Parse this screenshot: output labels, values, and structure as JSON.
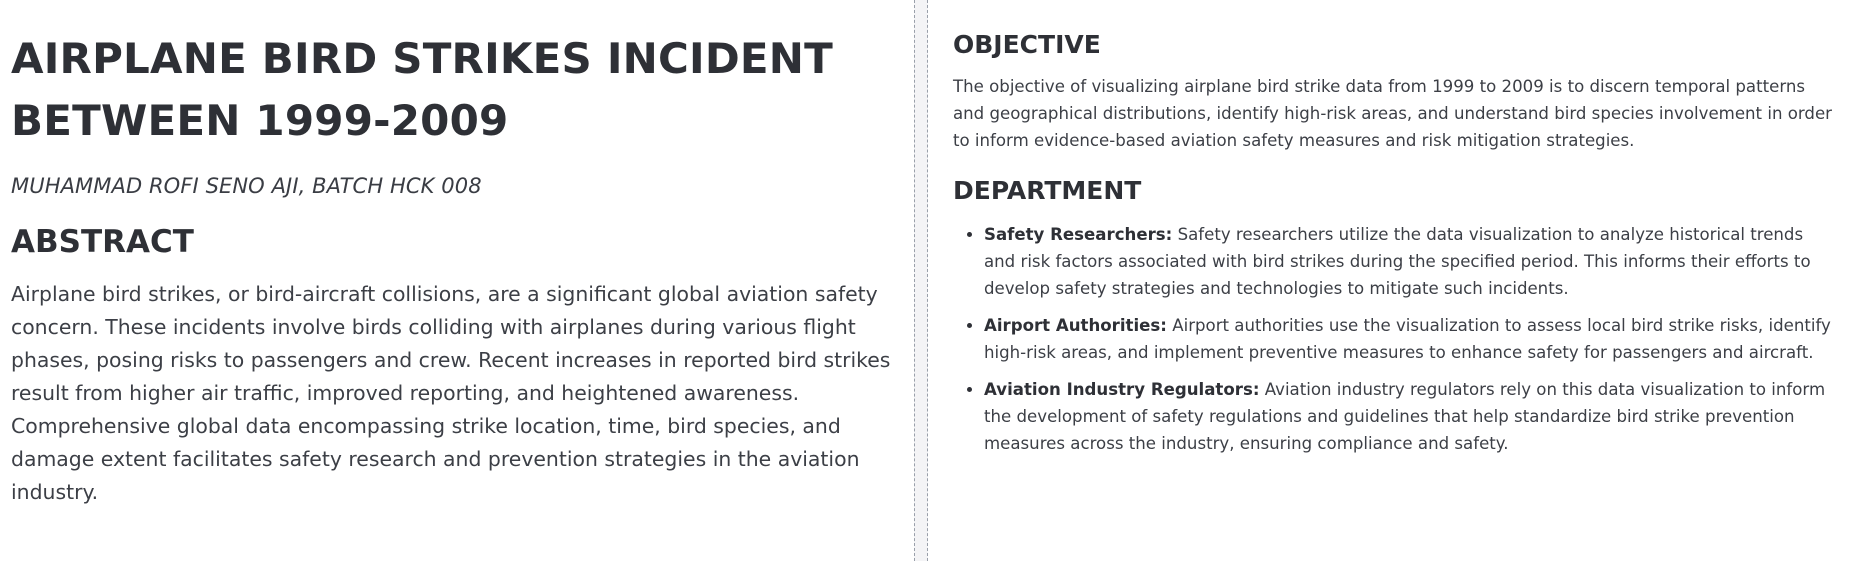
{
  "document": {
    "title": "AIRPLANE BIRD STRIKES INCIDENT BETWEEN 1999-2009",
    "author": "MUHAMMAD ROFI SENO AJI, BATCH HCK 008",
    "abstract": {
      "heading": "ABSTRACT",
      "text": "Airplane bird strikes, or bird-aircraft collisions, are a significant global aviation safety concern. These incidents involve birds colliding with airplanes during various flight phases, posing risks to passengers and crew. Recent increases in reported bird strikes result from higher air traffic, improved reporting, and heightened awareness. Comprehensive global data encompassing strike location, time, bird species, and damage extent facilitates safety research and prevention strategies in the aviation industry."
    },
    "objective": {
      "heading": "OBJECTIVE",
      "text": "The objective of visualizing airplane bird strike data from 1999 to 2009 is to discern temporal patterns and geographical distributions, identify high-risk areas, and understand bird species involvement in order to inform evidence-based aviation safety measures and risk mitigation strategies."
    },
    "department": {
      "heading": "DEPARTMENT",
      "items": [
        {
          "name": "Safety Researchers:",
          "text": " Safety researchers utilize the data visualization to analyze historical trends and risk factors associated with bird strikes during the specified period. This informs their efforts to develop safety strategies and technologies to mitigate such incidents."
        },
        {
          "name": "Airport Authorities:",
          "text": " Airport authorities use the visualization to assess local bird strike risks, identify high-risk areas, and implement preventive measures to enhance safety for passengers and aircraft."
        },
        {
          "name": "Aviation Industry Regulators:",
          "text": " Aviation industry regulators rely on this data visualization to inform the development of safety regulations and guidelines that help standardize bird strike prevention measures across the industry, ensuring compliance and safety."
        }
      ]
    }
  }
}
